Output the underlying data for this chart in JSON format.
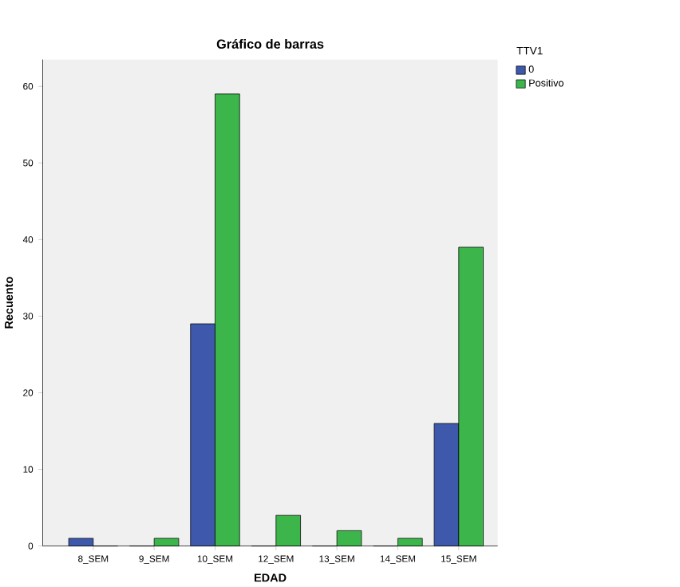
{
  "chart_data": {
    "type": "bar",
    "title": "Gráfico de barras",
    "xlabel": "EDAD",
    "ylabel": "Recuento",
    "legend_title": "TTV1",
    "categories": [
      "8_SEM",
      "9_SEM",
      "10_SEM",
      "12_SEM",
      "13_SEM",
      "14_SEM",
      "15_SEM"
    ],
    "series": [
      {
        "name": "0",
        "color": "#3e58ac",
        "values": [
          1,
          0,
          29,
          0,
          0,
          0,
          16
        ]
      },
      {
        "name": "Positivo",
        "color": "#3cb54a",
        "values": [
          0,
          1,
          59,
          4,
          2,
          1,
          39
        ]
      }
    ],
    "ylim": [
      0,
      63.5
    ],
    "yticks": [
      0,
      10,
      20,
      30,
      40,
      50,
      60
    ],
    "grid": false,
    "legend": "right"
  }
}
